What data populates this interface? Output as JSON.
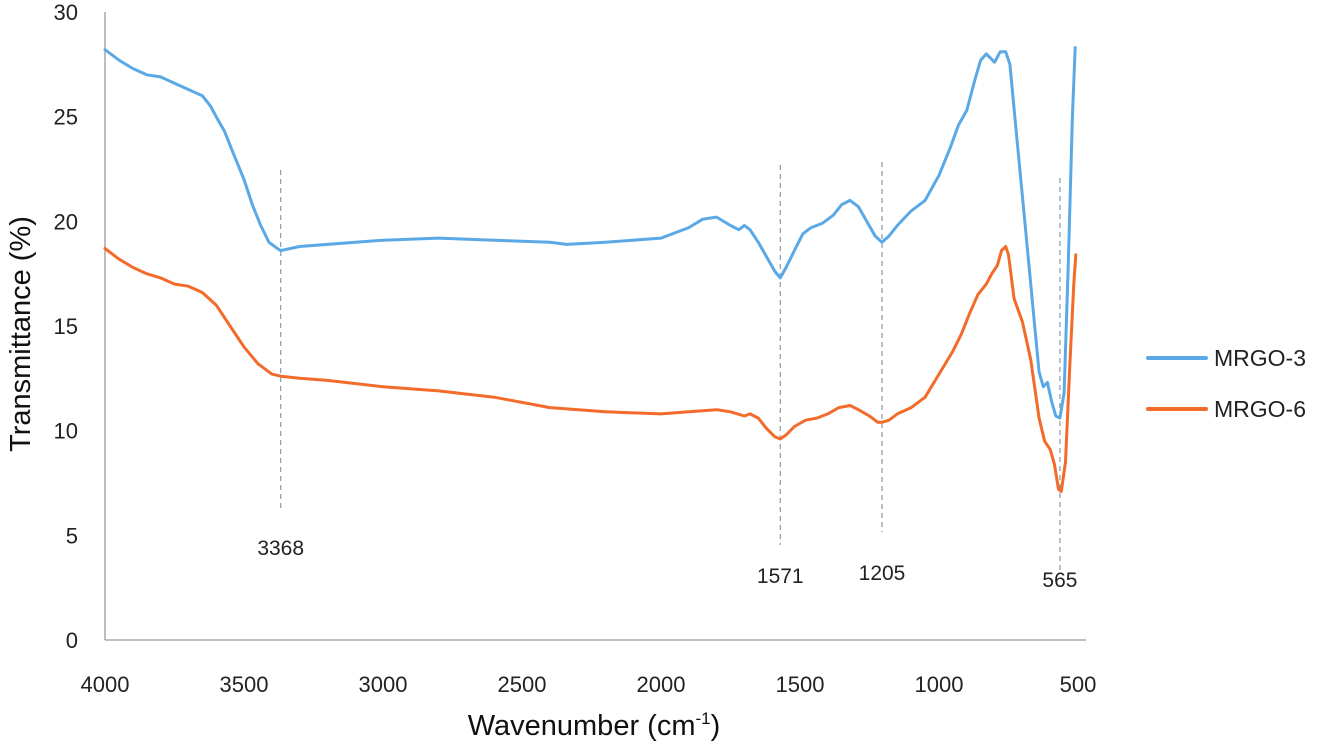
{
  "chart_data": {
    "type": "line",
    "xlabel": "Wavenumber (cm",
    "xlabel_sup": "-1",
    "xlabel_close": ")",
    "ylabel": "Transmittance (%)",
    "xlim": [
      4000,
      500
    ],
    "ylim": [
      0,
      30
    ],
    "x_ticks": [
      "4000",
      "3500",
      "3000",
      "2500",
      "2000",
      "1500",
      "1000",
      "500"
    ],
    "y_ticks": [
      "0",
      "5",
      "10",
      "15",
      "20",
      "25",
      "30"
    ],
    "grid": false,
    "legend_position": "right",
    "annotations": [
      {
        "x": 3368,
        "label": "3368"
      },
      {
        "x": 1571,
        "label": "1571"
      },
      {
        "x": 1205,
        "label": "1205"
      },
      {
        "x": 565,
        "label": "565"
      }
    ],
    "series": [
      {
        "name": "MRGO-3",
        "color": "#5aa9e6",
        "points": [
          [
            4000,
            28.2
          ],
          [
            3950,
            27.7
          ],
          [
            3900,
            27.3
          ],
          [
            3850,
            27.0
          ],
          [
            3800,
            26.9
          ],
          [
            3750,
            26.6
          ],
          [
            3700,
            26.3
          ],
          [
            3650,
            26.0
          ],
          [
            3620,
            25.5
          ],
          [
            3600,
            25.0
          ],
          [
            3570,
            24.3
          ],
          [
            3540,
            23.3
          ],
          [
            3500,
            22.0
          ],
          [
            3470,
            20.8
          ],
          [
            3440,
            19.8
          ],
          [
            3410,
            19.0
          ],
          [
            3380,
            18.7
          ],
          [
            3368,
            18.6
          ],
          [
            3300,
            18.8
          ],
          [
            3200,
            18.9
          ],
          [
            3000,
            19.1
          ],
          [
            2800,
            19.2
          ],
          [
            2600,
            19.1
          ],
          [
            2400,
            19.0
          ],
          [
            2340,
            18.9
          ],
          [
            2200,
            19.0
          ],
          [
            2000,
            19.2
          ],
          [
            1900,
            19.7
          ],
          [
            1850,
            20.1
          ],
          [
            1800,
            20.2
          ],
          [
            1750,
            19.8
          ],
          [
            1720,
            19.6
          ],
          [
            1700,
            19.8
          ],
          [
            1680,
            19.6
          ],
          [
            1650,
            19.0
          ],
          [
            1620,
            18.3
          ],
          [
            1590,
            17.6
          ],
          [
            1571,
            17.3
          ],
          [
            1550,
            17.8
          ],
          [
            1520,
            18.6
          ],
          [
            1490,
            19.4
          ],
          [
            1460,
            19.7
          ],
          [
            1420,
            19.9
          ],
          [
            1380,
            20.3
          ],
          [
            1350,
            20.8
          ],
          [
            1320,
            21.0
          ],
          [
            1290,
            20.7
          ],
          [
            1260,
            20.0
          ],
          [
            1230,
            19.3
          ],
          [
            1205,
            19.0
          ],
          [
            1180,
            19.3
          ],
          [
            1150,
            19.8
          ],
          [
            1100,
            20.5
          ],
          [
            1050,
            21.0
          ],
          [
            1000,
            22.2
          ],
          [
            960,
            23.5
          ],
          [
            930,
            24.6
          ],
          [
            900,
            25.3
          ],
          [
            870,
            26.8
          ],
          [
            850,
            27.7
          ],
          [
            830,
            28.0
          ],
          [
            800,
            27.6
          ],
          [
            780,
            28.1
          ],
          [
            760,
            28.1
          ],
          [
            745,
            27.5
          ],
          [
            720,
            24.0
          ],
          [
            690,
            19.8
          ],
          [
            660,
            15.6
          ],
          [
            640,
            12.8
          ],
          [
            625,
            12.1
          ],
          [
            610,
            12.3
          ],
          [
            595,
            11.4
          ],
          [
            580,
            10.7
          ],
          [
            565,
            10.6
          ],
          [
            550,
            11.8
          ],
          [
            535,
            18.0
          ],
          [
            520,
            25.0
          ],
          [
            510,
            28.3
          ]
        ]
      },
      {
        "name": "MRGO-6",
        "color": "#f26b2a",
        "points": [
          [
            4000,
            18.7
          ],
          [
            3950,
            18.2
          ],
          [
            3900,
            17.8
          ],
          [
            3850,
            17.5
          ],
          [
            3800,
            17.3
          ],
          [
            3750,
            17.0
          ],
          [
            3700,
            16.9
          ],
          [
            3650,
            16.6
          ],
          [
            3600,
            16.0
          ],
          [
            3550,
            15.0
          ],
          [
            3500,
            14.0
          ],
          [
            3450,
            13.2
          ],
          [
            3400,
            12.7
          ],
          [
            3368,
            12.6
          ],
          [
            3300,
            12.5
          ],
          [
            3200,
            12.4
          ],
          [
            3000,
            12.1
          ],
          [
            2800,
            11.9
          ],
          [
            2600,
            11.6
          ],
          [
            2400,
            11.1
          ],
          [
            2200,
            10.9
          ],
          [
            2000,
            10.8
          ],
          [
            1900,
            10.9
          ],
          [
            1800,
            11.0
          ],
          [
            1750,
            10.9
          ],
          [
            1700,
            10.7
          ],
          [
            1680,
            10.8
          ],
          [
            1650,
            10.6
          ],
          [
            1620,
            10.1
          ],
          [
            1590,
            9.7
          ],
          [
            1571,
            9.6
          ],
          [
            1550,
            9.8
          ],
          [
            1520,
            10.2
          ],
          [
            1480,
            10.5
          ],
          [
            1440,
            10.6
          ],
          [
            1400,
            10.8
          ],
          [
            1360,
            11.1
          ],
          [
            1320,
            11.2
          ],
          [
            1290,
            11.0
          ],
          [
            1250,
            10.7
          ],
          [
            1220,
            10.4
          ],
          [
            1205,
            10.4
          ],
          [
            1180,
            10.5
          ],
          [
            1150,
            10.8
          ],
          [
            1100,
            11.1
          ],
          [
            1050,
            11.6
          ],
          [
            1000,
            12.7
          ],
          [
            950,
            13.8
          ],
          [
            920,
            14.6
          ],
          [
            890,
            15.6
          ],
          [
            860,
            16.5
          ],
          [
            830,
            17.0
          ],
          [
            810,
            17.5
          ],
          [
            790,
            17.9
          ],
          [
            775,
            18.6
          ],
          [
            760,
            18.8
          ],
          [
            750,
            18.4
          ],
          [
            730,
            16.3
          ],
          [
            700,
            15.2
          ],
          [
            670,
            13.4
          ],
          [
            640,
            10.6
          ],
          [
            620,
            9.5
          ],
          [
            600,
            9.1
          ],
          [
            585,
            8.4
          ],
          [
            570,
            7.2
          ],
          [
            560,
            7.1
          ],
          [
            545,
            8.5
          ],
          [
            530,
            13.0
          ],
          [
            515,
            17.0
          ],
          [
            508,
            18.4
          ]
        ]
      }
    ]
  }
}
